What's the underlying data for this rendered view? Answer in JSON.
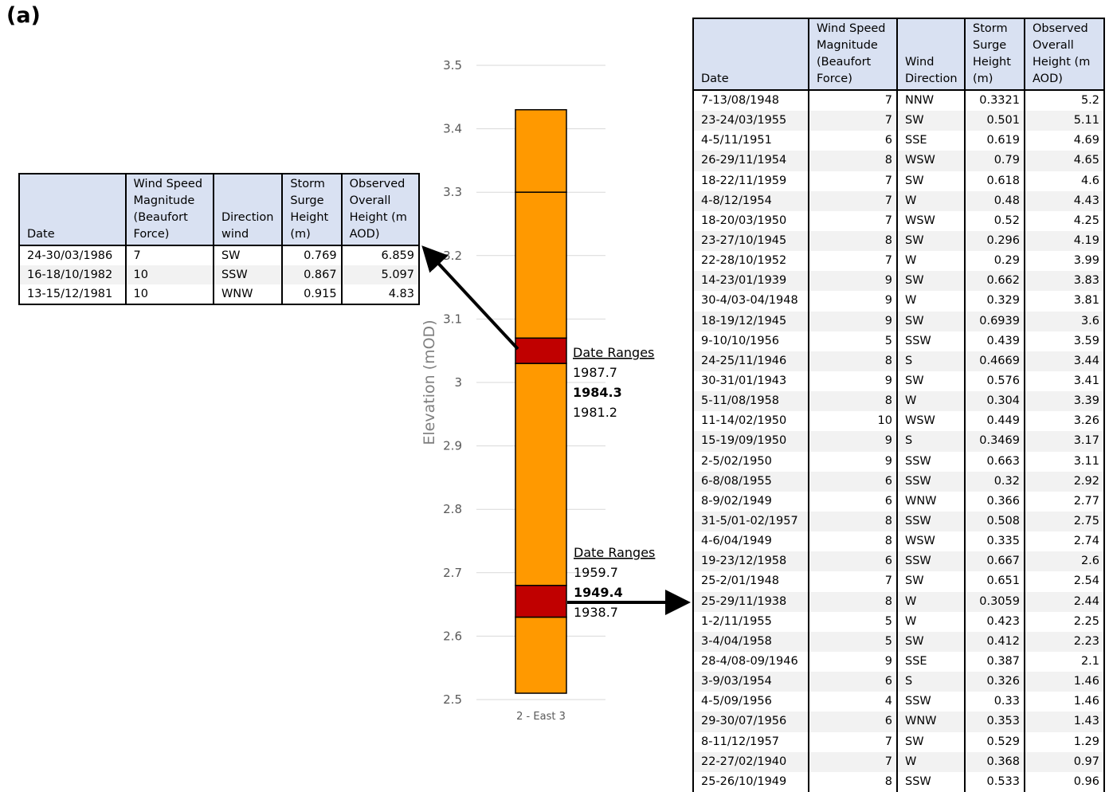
{
  "panel_label": "(a)",
  "chart_data": {
    "type": "bar",
    "categories": [
      "2 - East 3"
    ],
    "ylabel": "Elevation (mOD)",
    "ylim": [
      2.5,
      3.5
    ],
    "yticks": [
      "2.5",
      "2.6",
      "2.7",
      "2.8",
      "2.9",
      "3",
      "3.1",
      "3.2",
      "3.3",
      "3.4",
      "3.5"
    ],
    "grid": true,
    "stack": {
      "base": 2.51,
      "top": 3.43,
      "segments": [
        {
          "from": 2.51,
          "to": 2.63,
          "color": "#ff9900"
        },
        {
          "from": 2.63,
          "to": 2.68,
          "color": "#c00000"
        },
        {
          "from": 2.68,
          "to": 3.03,
          "color": "#ff9900"
        },
        {
          "from": 3.03,
          "to": 3.07,
          "color": "#c00000"
        },
        {
          "from": 3.07,
          "to": 3.3,
          "color": "#ff9900"
        },
        {
          "from": 3.3,
          "to": 3.43,
          "color": "#ff9900"
        }
      ]
    },
    "annotations": [
      {
        "heading": "Date Ranges",
        "upper": "1987.7",
        "central": "1984.3",
        "lower": "1981.2"
      },
      {
        "heading": "Date Ranges",
        "upper": "1959.7",
        "central": "1949.4",
        "lower": "1938.7"
      }
    ],
    "colors": {
      "orange": "#ff9900",
      "red": "#c00000",
      "grid": "#d9d9d9",
      "header": "#d9e1f2"
    }
  },
  "table_left": {
    "headers": [
      "Date",
      "Wind Speed Magnitude (Beaufort Force)",
      "Direction wind",
      "Storm Surge Height (m)",
      "Observed Overall Height (m AOD)"
    ],
    "rows": [
      [
        "24-30/03/1986",
        "7",
        "SW",
        "0.769",
        "6.859"
      ],
      [
        "16-18/10/1982",
        "10",
        "SSW",
        "0.867",
        "5.097"
      ],
      [
        "13-15/12/1981",
        "10",
        "WNW",
        "0.915",
        "4.83"
      ]
    ]
  },
  "table_right": {
    "headers": [
      "Date",
      "Wind Speed Magnitude (Beaufort Force)",
      "Wind Direction",
      "Storm Surge Height (m)",
      "Observed Overall Height (m AOD)"
    ],
    "rows": [
      [
        "7-13/08/1948",
        "7",
        "NNW",
        "0.3321",
        "5.2"
      ],
      [
        "23-24/03/1955",
        "7",
        "SW",
        "0.501",
        "5.11"
      ],
      [
        "4-5/11/1951",
        "6",
        "SSE",
        "0.619",
        "4.69"
      ],
      [
        "26-29/11/1954",
        "8",
        "WSW",
        "0.79",
        "4.65"
      ],
      [
        "18-22/11/1959",
        "7",
        "SW",
        "0.618",
        "4.6"
      ],
      [
        "4-8/12/1954",
        "7",
        "W",
        "0.48",
        "4.43"
      ],
      [
        "18-20/03/1950",
        "7",
        "WSW",
        "0.52",
        "4.25"
      ],
      [
        "23-27/10/1945",
        "8",
        "SW",
        "0.296",
        "4.19"
      ],
      [
        "22-28/10/1952",
        "7",
        "W",
        "0.29",
        "3.99"
      ],
      [
        "14-23/01/1939",
        "9",
        "SW",
        "0.662",
        "3.83"
      ],
      [
        "30-4/03-04/1948",
        "9",
        "W",
        "0.329",
        "3.81"
      ],
      [
        "18-19/12/1945",
        "9",
        "SW",
        "0.6939",
        "3.6"
      ],
      [
        "9-10/10/1956",
        "5",
        "SSW",
        "0.439",
        "3.59"
      ],
      [
        "24-25/11/1946",
        "8",
        "S",
        "0.4669",
        "3.44"
      ],
      [
        "30-31/01/1943",
        "9",
        "SW",
        "0.576",
        "3.41"
      ],
      [
        "5-11/08/1958",
        "8",
        "W",
        "0.304",
        "3.39"
      ],
      [
        "11-14/02/1950",
        "10",
        "WSW",
        "0.449",
        "3.26"
      ],
      [
        "15-19/09/1950",
        "9",
        "S",
        "0.3469",
        "3.17"
      ],
      [
        "2-5/02/1950",
        "9",
        "SSW",
        "0.663",
        "3.11"
      ],
      [
        "6-8/08/1955",
        "6",
        "SSW",
        "0.32",
        "2.92"
      ],
      [
        "8-9/02/1949",
        "6",
        "WNW",
        "0.366",
        "2.77"
      ],
      [
        "31-5/01-02/1957",
        "8",
        "SSW",
        "0.508",
        "2.75"
      ],
      [
        "4-6/04/1949",
        "8",
        "WSW",
        "0.335",
        "2.74"
      ],
      [
        "19-23/12/1958",
        "6",
        "SSW",
        "0.667",
        "2.6"
      ],
      [
        "25-2/01/1948",
        "7",
        "SW",
        "0.651",
        "2.54"
      ],
      [
        "25-29/11/1938",
        "8",
        "W",
        "0.3059",
        "2.44"
      ],
      [
        "1-2/11/1955",
        "5",
        "W",
        "0.423",
        "2.25"
      ],
      [
        "3-4/04/1958",
        "5",
        "SW",
        "0.412",
        "2.23"
      ],
      [
        "28-4/08-09/1946",
        "9",
        "SSE",
        "0.387",
        "2.1"
      ],
      [
        "3-9/03/1954",
        "6",
        "S",
        "0.326",
        "1.46"
      ],
      [
        "4-5/09/1956",
        "4",
        "SSW",
        "0.33",
        "1.46"
      ],
      [
        "29-30/07/1956",
        "6",
        "WNW",
        "0.353",
        "1.43"
      ],
      [
        "8-11/12/1957",
        "7",
        "SW",
        "0.529",
        "1.29"
      ],
      [
        "22-27/02/1940",
        "7",
        "W",
        "0.368",
        "0.97"
      ],
      [
        "25-26/10/1949",
        "8",
        "SSW",
        "0.533",
        "0.96"
      ]
    ]
  }
}
